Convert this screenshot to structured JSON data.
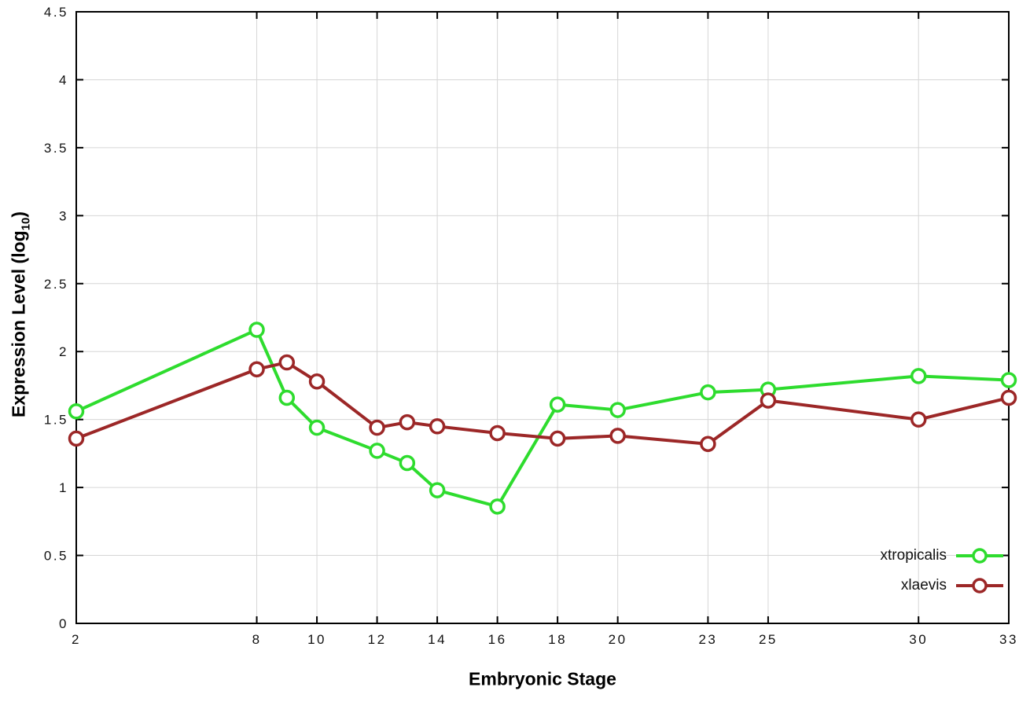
{
  "chart_data": {
    "type": "line",
    "title": "",
    "xlabel": "Embryonic Stage",
    "ylabel": "Expression Level (log10)",
    "ylabel_parts": {
      "prefix": "Expression Level (log",
      "sub": "10",
      "suffix": ")"
    },
    "xlim": [
      2,
      33
    ],
    "ylim": [
      0,
      4.5
    ],
    "y_tick_step": 0.5,
    "x_ticks": [
      2,
      8,
      10,
      12,
      14,
      16,
      18,
      20,
      23,
      25,
      30,
      33
    ],
    "grid": true,
    "legend_position": "bottom-right-inside",
    "marker": "open-circle",
    "x": [
      2,
      8,
      9,
      10,
      12,
      13,
      14,
      16,
      18,
      20,
      23,
      25,
      30,
      33
    ],
    "series": [
      {
        "name": "xtropicalis",
        "color": "#2edc2e",
        "yerr": 0.04,
        "values": [
          1.56,
          2.16,
          1.66,
          1.44,
          1.27,
          1.18,
          0.98,
          0.86,
          1.61,
          1.57,
          1.7,
          1.72,
          1.82,
          1.79
        ]
      },
      {
        "name": "xlaevis",
        "color": "#9c2727",
        "yerr": 0.04,
        "values": [
          1.36,
          1.87,
          1.92,
          1.78,
          1.44,
          1.48,
          1.45,
          1.4,
          1.36,
          1.38,
          1.32,
          1.64,
          1.5,
          1.66
        ]
      }
    ]
  }
}
